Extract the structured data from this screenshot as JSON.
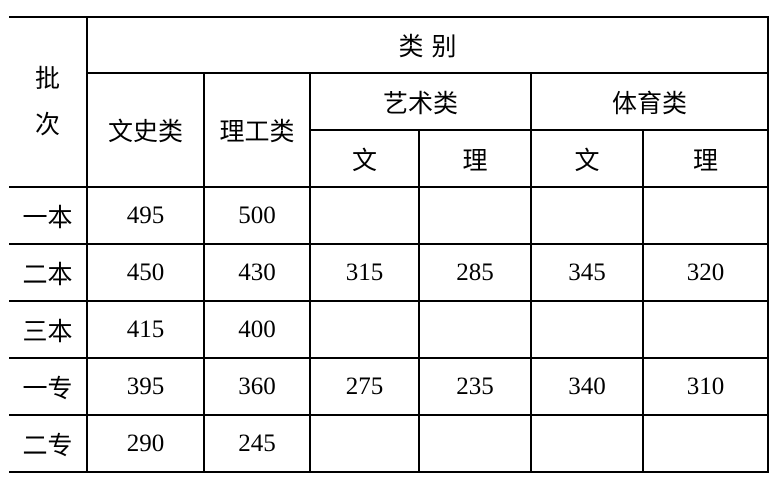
{
  "header": {
    "batch_label": "批次",
    "category_label": "类 别",
    "wenshi": "文史类",
    "ligong": "理工类",
    "art": "艺术类",
    "sports": "体育类",
    "art_wen": "文",
    "art_li": "理",
    "sports_wen": "文",
    "sports_li": "理"
  },
  "rows": [
    {
      "batch": "一本",
      "values": [
        "495",
        "500",
        "",
        "",
        "",
        ""
      ]
    },
    {
      "batch": "二本",
      "values": [
        "450",
        "430",
        "315",
        "285",
        "345",
        "320"
      ]
    },
    {
      "batch": "三本",
      "values": [
        "415",
        "400",
        "",
        "",
        "",
        ""
      ]
    },
    {
      "batch": "一专",
      "values": [
        "395",
        "360",
        "275",
        "235",
        "340",
        "310"
      ]
    },
    {
      "batch": "二专",
      "values": [
        "290",
        "245",
        "",
        "",
        "",
        ""
      ]
    }
  ]
}
